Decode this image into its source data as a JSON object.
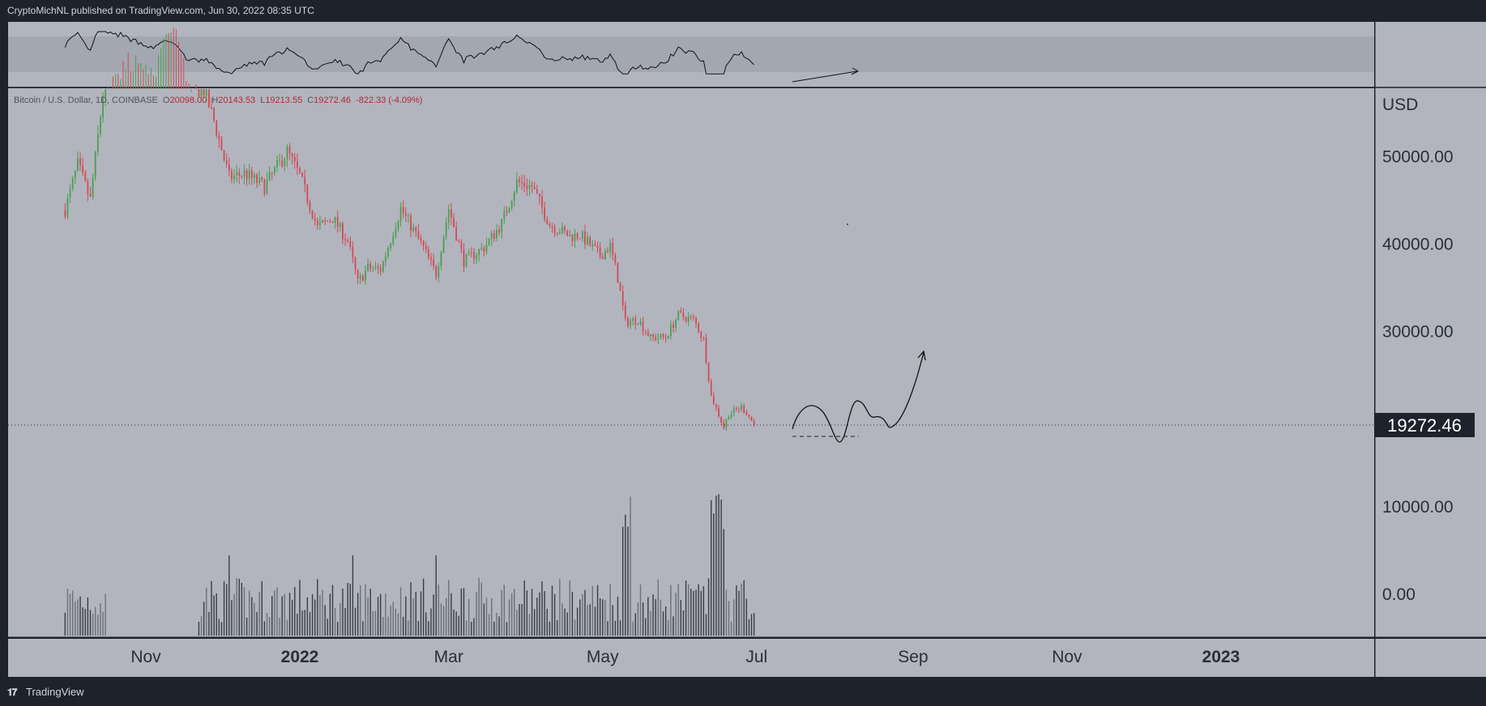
{
  "header": {
    "published": "CryptoMichNL published on TradingView.com, Jun 30, 2022 08:35 UTC"
  },
  "footer": {
    "brand": "TradingView",
    "logo_icon": "tradingview-logo-icon"
  },
  "legend": {
    "symbol": "Bitcoin / U.S. Dollar, 1D, COINBASE",
    "open_label": "O",
    "open": "20098.00",
    "high_label": "H",
    "high": "20143.53",
    "low_label": "L",
    "low": "19213.55",
    "close_label": "C",
    "close": "19272.46",
    "change": "-822.33 (-4.09%)"
  },
  "price_axis": {
    "currency": "USD",
    "current_price": "19272.46"
  },
  "colors": {
    "up": "#4c9e50",
    "down": "#d24a56",
    "background": "#b2b5be",
    "panel": "#1e222d"
  },
  "chart_data": {
    "type": "candlestick",
    "symbol": "Bitcoin / U.S. Dollar",
    "interval": "1D",
    "exchange": "COINBASE",
    "y_ticks": [
      50000,
      40000,
      30000,
      10000,
      0
    ],
    "y_tick_labels": [
      "50000.00",
      "40000.00",
      "30000.00",
      "10000.00",
      "0.00"
    ],
    "x_tick_labels": [
      "Nov",
      "2022",
      "Mar",
      "May",
      "Jul",
      "Sep",
      "Nov",
      "2023"
    ],
    "last_price": 19272.46,
    "price_path": [
      [
        "2021-09-30",
        43800
      ],
      [
        "2021-10-05",
        49000
      ],
      [
        "2021-10-10",
        45000
      ],
      [
        "2021-10-15",
        57000
      ],
      [
        "2021-10-22",
        61000
      ],
      [
        "2021-10-28",
        61500
      ],
      [
        "2021-11-05",
        61000
      ],
      [
        "2021-11-10",
        66000
      ],
      [
        "2021-11-14",
        64000
      ],
      [
        "2021-11-18",
        58000
      ],
      [
        "2021-11-24",
        57500
      ],
      [
        "2021-11-28",
        54000
      ],
      [
        "2021-12-04",
        47500
      ],
      [
        "2021-12-10",
        48000
      ],
      [
        "2021-12-18",
        46500
      ],
      [
        "2021-12-27",
        50500
      ],
      [
        "2022-01-01",
        47700
      ],
      [
        "2022-01-08",
        41800
      ],
      [
        "2022-01-14",
        42900
      ],
      [
        "2022-01-20",
        40300
      ],
      [
        "2022-01-24",
        35500
      ],
      [
        "2022-01-28",
        37200
      ],
      [
        "2022-02-02",
        37000
      ],
      [
        "2022-02-10",
        44000
      ],
      [
        "2022-02-18",
        40000
      ],
      [
        "2022-02-24",
        36500
      ],
      [
        "2022-03-01",
        44000
      ],
      [
        "2022-03-07",
        38000
      ],
      [
        "2022-03-15",
        39500
      ],
      [
        "2022-03-22",
        42300
      ],
      [
        "2022-03-28",
        47000
      ],
      [
        "2022-04-03",
        46500
      ],
      [
        "2022-04-10",
        42200
      ],
      [
        "2022-04-18",
        40800
      ],
      [
        "2022-04-22",
        41000
      ],
      [
        "2022-04-30",
        38600
      ],
      [
        "2022-05-04",
        39700
      ],
      [
        "2022-05-07",
        36000
      ],
      [
        "2022-05-10",
        31000
      ],
      [
        "2022-05-15",
        31300
      ],
      [
        "2022-05-20",
        29200
      ],
      [
        "2022-05-26",
        29300
      ],
      [
        "2022-05-31",
        31800
      ],
      [
        "2022-06-06",
        31300
      ],
      [
        "2022-06-10",
        29000
      ],
      [
        "2022-06-13",
        22500
      ],
      [
        "2022-06-18",
        19000
      ],
      [
        "2022-06-20",
        20500
      ],
      [
        "2022-06-25",
        21300
      ],
      [
        "2022-06-27",
        20700
      ],
      [
        "2022-06-30",
        19272.46
      ]
    ],
    "volume_profile": "daily volume bars under price, spikes around mid-May and mid-June 2022"
  }
}
